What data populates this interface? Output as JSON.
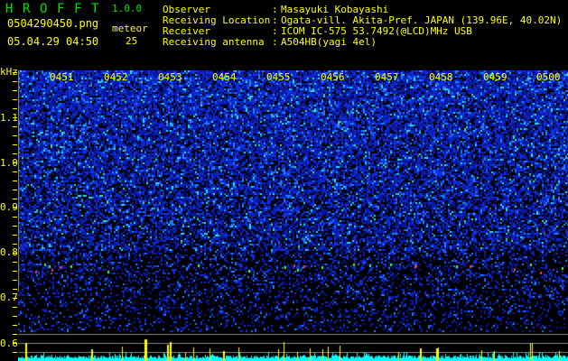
{
  "app": {
    "title_letters": [
      "H",
      "R",
      "O",
      "F",
      "F",
      "T"
    ],
    "version": "1.0.0"
  },
  "file": {
    "name": "0504290450.png",
    "datetime": "05.04.29 04:50"
  },
  "meteor": {
    "label": "meteor",
    "count": "25"
  },
  "info": [
    {
      "label": "Observer",
      "value": "Masayuki Kobayashi"
    },
    {
      "label": "Receiving Location",
      "value": "Ogata-vill. Akita-Pref. JAPAN (139.96E, 40.02N)"
    },
    {
      "label": "Receiver",
      "value": "ICOM IC-575 53.7492(@LCD)MHz USB"
    },
    {
      "label": "Receiving antenna",
      "value": "A504HB(yagi 4el)"
    }
  ],
  "spectrogram": {
    "y_unit": "kHz",
    "y_ticks": [
      "1.1",
      "1.0",
      "0.9",
      "0.8",
      "0.7",
      "0.6"
    ],
    "time_labels": [
      "0451",
      "0452",
      "0453",
      "0454",
      "0455",
      "0456",
      "0457",
      "0458",
      "0459",
      "0500"
    ],
    "colors": {
      "background": "#000000",
      "noise": "#1020d0",
      "text": "#ffff00",
      "histogram": "#00ffff",
      "detection": "#ffff00"
    }
  }
}
